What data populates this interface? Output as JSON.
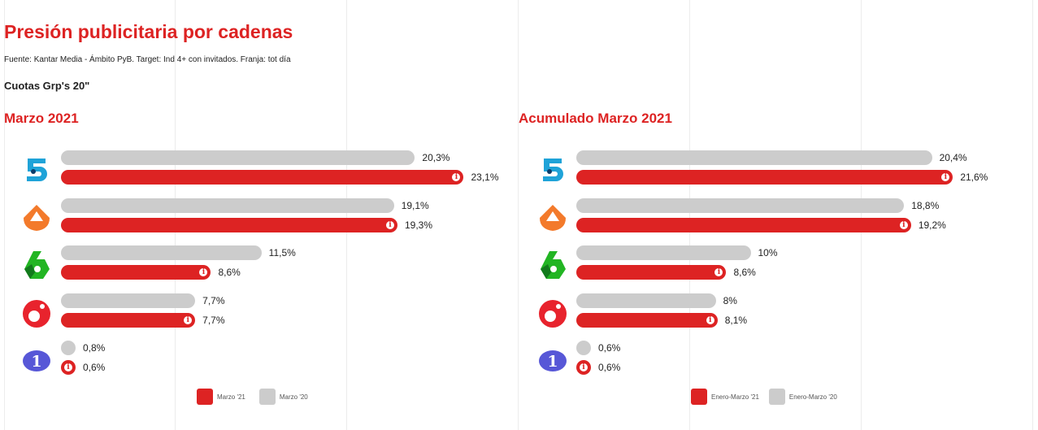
{
  "title": "Presión publicitaria por cadenas",
  "source": "Fuente: Kantar Media - Ámbito PyB. Target: Ind 4+ con invitados. Franja: tot día",
  "subtitle": "Cuotas Grp's 20\"",
  "colors": {
    "current": "#dd2323",
    "previous": "#cccccc"
  },
  "chart_data": [
    {
      "type": "bar",
      "title": "Marzo 2021",
      "categories": [
        "Telecinco",
        "Antena 3",
        "La Sexta",
        "Cuatro",
        "La 1"
      ],
      "series": [
        {
          "name": "Marzo '20",
          "values": [
            20.3,
            19.1,
            11.5,
            7.7,
            0.8
          ],
          "labels": [
            "20,3%",
            "19,1%",
            "11,5%",
            "7,7%",
            "0,8%"
          ]
        },
        {
          "name": "Marzo '21",
          "values": [
            23.1,
            19.3,
            8.6,
            7.7,
            0.6
          ],
          "labels": [
            "23,1%",
            "19,3%",
            "8,6%",
            "7,7%",
            "0,6%"
          ]
        }
      ],
      "legend": [
        "Marzo '21",
        "Marzo '20"
      ],
      "unit": "%"
    },
    {
      "type": "bar",
      "title": "Acumulado Marzo 2021",
      "categories": [
        "Telecinco",
        "Antena 3",
        "La Sexta",
        "Cuatro",
        "La 1"
      ],
      "series": [
        {
          "name": "Enero-Marzo '20",
          "values": [
            20.4,
            18.8,
            10,
            8,
            0.6
          ],
          "labels": [
            "20,4%",
            "18,8%",
            "10%",
            "8%",
            "0,6%"
          ]
        },
        {
          "name": "Enero-Marzo '21",
          "values": [
            21.6,
            19.2,
            8.6,
            8.1,
            0.6
          ],
          "labels": [
            "21,6%",
            "19,2%",
            "8,6%",
            "8,1%",
            "0,6%"
          ]
        }
      ],
      "legend": [
        "Enero-Marzo '21",
        "Enero-Marzo '20"
      ],
      "unit": "%"
    }
  ]
}
